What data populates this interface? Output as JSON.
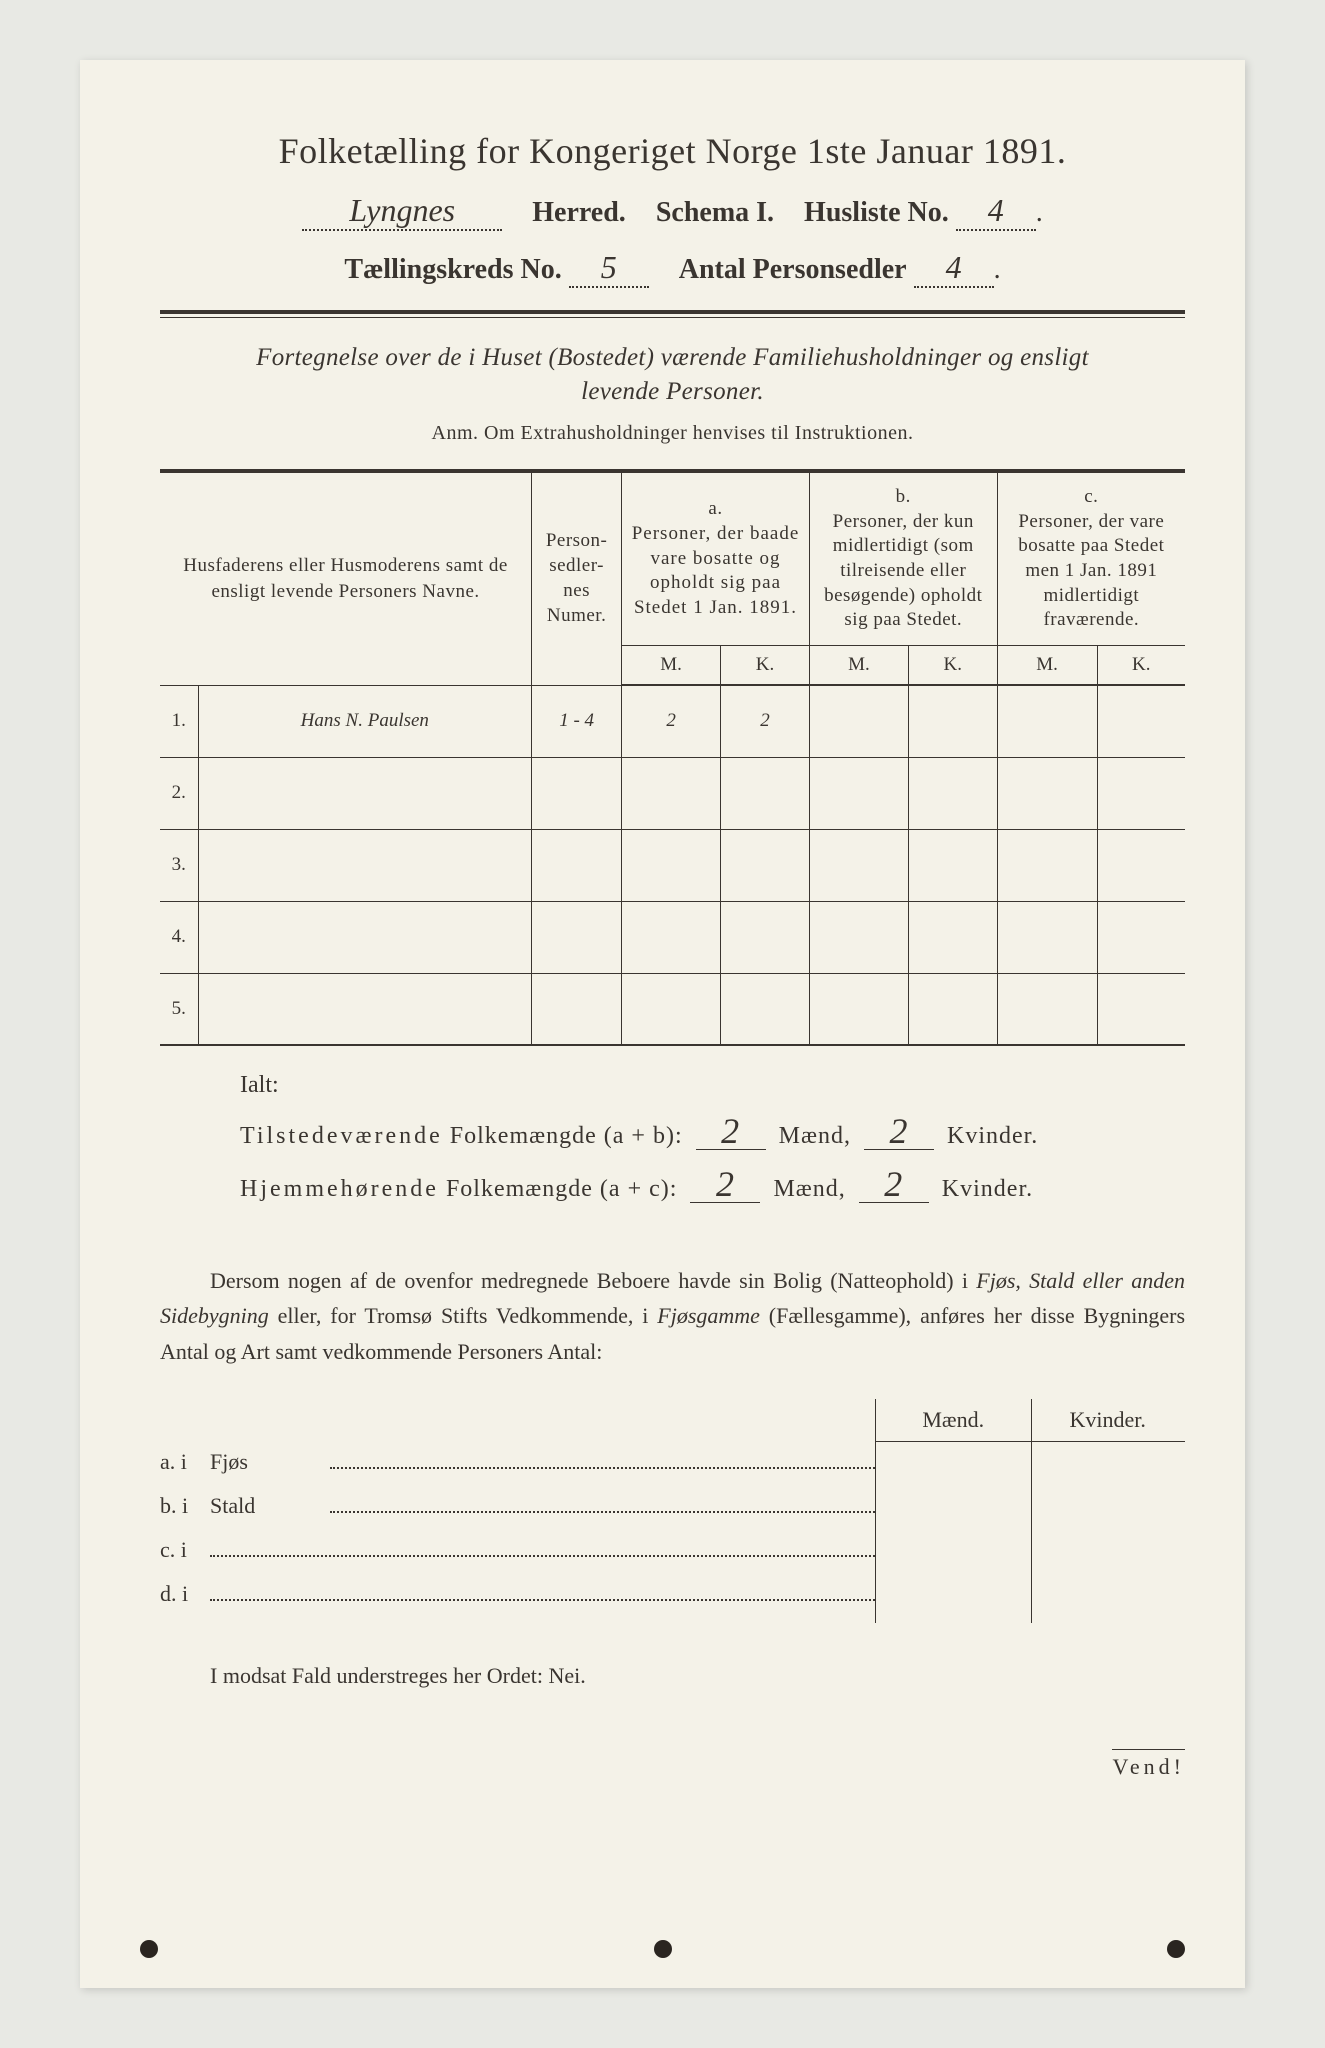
{
  "title": "Folketælling for Kongeriget Norge 1ste Januar 1891.",
  "header": {
    "herred_value": "Lyngnes",
    "herred_label": "Herred.",
    "schema_label": "Schema I.",
    "husliste_label": "Husliste No.",
    "husliste_value": "4",
    "kreds_label": "Tællingskreds No.",
    "kreds_value": "5",
    "antal_label": "Antal Personsedler",
    "antal_value": "4"
  },
  "subtitle_line1": "Fortegnelse over de i Huset (Bostedet) værende Familiehusholdninger og ensligt",
  "subtitle_line2": "levende Personer.",
  "anm": "Anm. Om Extrahusholdninger henvises til Instruktionen.",
  "table": {
    "col1": "Husfaderens eller Husmoderens samt de ensligt levende Personers Navne.",
    "col2": "Person-sedler-nes Numer.",
    "col_a_top": "a.",
    "col_a": "Personer, der baade vare bosatte og opholdt sig paa Stedet 1 Jan. 1891.",
    "col_b_top": "b.",
    "col_b": "Personer, der kun midlertidigt (som tilreisende eller besøgende) opholdt sig paa Stedet.",
    "col_c_top": "c.",
    "col_c": "Personer, der vare bosatte paa Stedet men 1 Jan. 1891 midlertidigt fraværende.",
    "m": "M.",
    "k": "K.",
    "rows": [
      {
        "num": "1.",
        "name": "Hans N. Paulsen",
        "sedler": "1 - 4",
        "a_m": "2",
        "a_k": "2",
        "b_m": "",
        "b_k": "",
        "c_m": "",
        "c_k": ""
      },
      {
        "num": "2.",
        "name": "",
        "sedler": "",
        "a_m": "",
        "a_k": "",
        "b_m": "",
        "b_k": "",
        "c_m": "",
        "c_k": ""
      },
      {
        "num": "3.",
        "name": "",
        "sedler": "",
        "a_m": "",
        "a_k": "",
        "b_m": "",
        "b_k": "",
        "c_m": "",
        "c_k": ""
      },
      {
        "num": "4.",
        "name": "",
        "sedler": "",
        "a_m": "",
        "a_k": "",
        "b_m": "",
        "b_k": "",
        "c_m": "",
        "c_k": ""
      },
      {
        "num": "5.",
        "name": "",
        "sedler": "",
        "a_m": "",
        "a_k": "",
        "b_m": "",
        "b_k": "",
        "c_m": "",
        "c_k": ""
      }
    ]
  },
  "ialt": {
    "label": "Ialt:",
    "line1_a": "Tilstedeværende",
    "line1_b": "Folkemængde (a + b):",
    "line2_a": "Hjemmehørende",
    "line2_b": "Folkemængde (a + c):",
    "maend": "Mænd,",
    "kvinder": "Kvinder.",
    "l1_m": "2",
    "l1_k": "2",
    "l2_m": "2",
    "l2_k": "2"
  },
  "para": "Dersom nogen af de ovenfor medregnede Beboere havde sin Bolig (Natteophold) i Fjøs, Stald eller anden Sidebygning eller, for Tromsø Stifts Vedkommende, i Fjøsgamme (Fællesgamme), anføres her disse Bygningers Antal og Art samt vedkommende Personers Antal:",
  "para_ital1": "Fjøs, Stald eller anden Sidebygning",
  "para_ital2": "Fjøsgamme",
  "mk": {
    "m": "Mænd.",
    "k": "Kvinder."
  },
  "abcd": {
    "a": {
      "lbl": "a.  i",
      "word": "Fjøs"
    },
    "b": {
      "lbl": "b.  i",
      "word": "Stald"
    },
    "c": {
      "lbl": "c.  i",
      "word": ""
    },
    "d": {
      "lbl": "d.  i",
      "word": ""
    }
  },
  "nei": "I modsat Fald understreges her Ordet: Nei.",
  "vend": "Vend!"
}
